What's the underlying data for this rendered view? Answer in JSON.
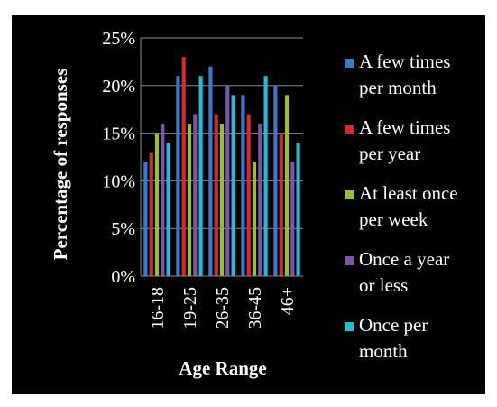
{
  "chart_data": {
    "type": "bar",
    "xlabel": "Age Range",
    "ylabel": "Percentage of responses",
    "ylim": [
      0,
      25
    ],
    "yticks": [
      0,
      5,
      10,
      15,
      20,
      25
    ],
    "ytick_suffix": "%",
    "grid": true,
    "legend_position": "right",
    "background": "#000000",
    "categories": [
      "16-18",
      "19-25",
      "26-35",
      "36-45",
      "46+"
    ],
    "series": [
      {
        "name": "A few times per month",
        "legend_lines": [
          "A few times",
          "per month"
        ],
        "color": "#3a78c9",
        "values": [
          12,
          21,
          22,
          19,
          20
        ]
      },
      {
        "name": "A few times per year",
        "legend_lines": [
          "A few times",
          "per year"
        ],
        "color": "#c9302c",
        "values": [
          13,
          23,
          17,
          17,
          15
        ]
      },
      {
        "name": "At least once per week",
        "legend_lines": [
          "At least once",
          "per week"
        ],
        "color": "#9bbb3a",
        "values": [
          15,
          16,
          16,
          12,
          19
        ]
      },
      {
        "name": "Once a year or less",
        "legend_lines": [
          "Once a year",
          "or less"
        ],
        "color": "#7a56a8",
        "values": [
          16,
          17,
          20,
          16,
          12
        ]
      },
      {
        "name": "Once per month",
        "legend_lines": [
          "Once per",
          "month"
        ],
        "color": "#2fb5d2",
        "values": [
          14,
          21,
          19,
          21,
          14
        ]
      }
    ]
  }
}
